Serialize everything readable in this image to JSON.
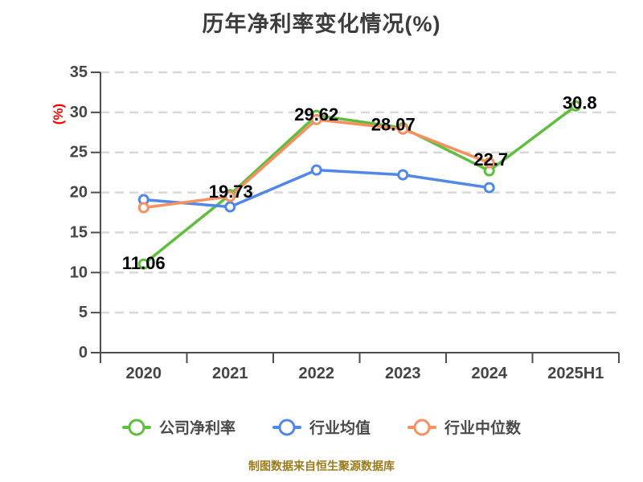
{
  "title": "历年净利率变化情况(%)",
  "y_axis_label": "(%)",
  "y_axis_label_color": "#ff0000",
  "footer": {
    "text": "制图数据来自恒生聚源数据库",
    "color": "#9c7b1c"
  },
  "chart_data": {
    "type": "line",
    "title": "历年净利率变化情况(%)",
    "ylabel": "(%)",
    "categories": [
      "2020",
      "2021",
      "2022",
      "2023",
      "2024",
      "2025H1"
    ],
    "series": [
      {
        "name": "公司净利率",
        "color": "#5fbf3d",
        "values": [
          11.06,
          19.73,
          29.62,
          28.07,
          22.7,
          30.8
        ],
        "labels": [
          "11.06",
          "19.73",
          "29.62",
          "28.07",
          "22.7",
          "30.8"
        ],
        "show_labels": true
      },
      {
        "name": "行业均值",
        "color": "#5287ea",
        "values": [
          19.1,
          18.2,
          22.8,
          22.2,
          20.6,
          null
        ],
        "show_labels": false
      },
      {
        "name": "行业中位数",
        "color": "#f78f61",
        "values": [
          18.1,
          19.5,
          29.1,
          27.9,
          23.7,
          null
        ],
        "show_labels": false
      }
    ],
    "ylim": [
      0,
      35
    ],
    "y_ticks": [
      0,
      5,
      10,
      15,
      20,
      25,
      30,
      35
    ],
    "grid": "horizontal-dashed",
    "gridline_color": "#d8d8d8",
    "axis_color": "#4d4d4d",
    "tick_label_color": "#454545",
    "data_label_color": "#000000",
    "legend_position": "bottom"
  }
}
